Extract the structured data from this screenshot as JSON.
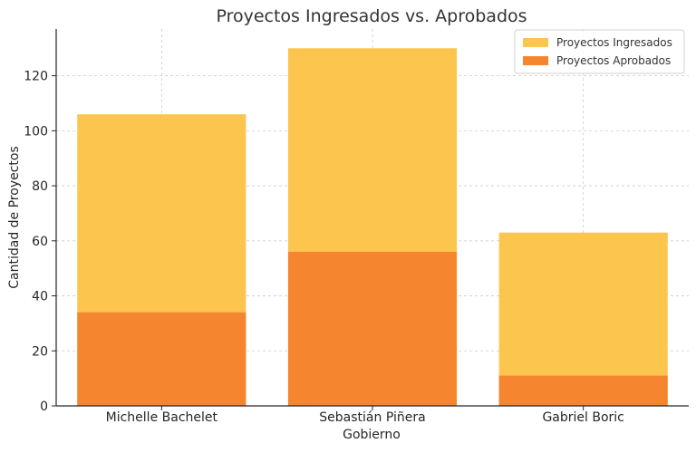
{
  "chart_data": {
    "type": "bar",
    "title": "Proyectos Ingresados vs. Aprobados",
    "xlabel": "Gobierno",
    "ylabel": "Cantidad de Proyectos",
    "categories": [
      "Michelle Bachelet",
      "Sebastián Piñera",
      "Gabriel Boric"
    ],
    "series": [
      {
        "name": "Proyectos Ingresados",
        "values": [
          106,
          130,
          63
        ],
        "color": "#fcc54d"
      },
      {
        "name": "Proyectos Aprobados",
        "values": [
          34,
          56,
          11
        ],
        "color": "#f5852e"
      }
    ],
    "ylim": [
      0,
      137
    ],
    "yticks": [
      0,
      20,
      40,
      60,
      80,
      100,
      120
    ],
    "grid": true,
    "legend_position": "top-right",
    "overlaid_bars": true
  },
  "legend": {
    "items": [
      {
        "label": "Proyectos Ingresados",
        "color": "#fcc54d"
      },
      {
        "label": "Proyectos Aprobados",
        "color": "#f5852e"
      }
    ]
  }
}
